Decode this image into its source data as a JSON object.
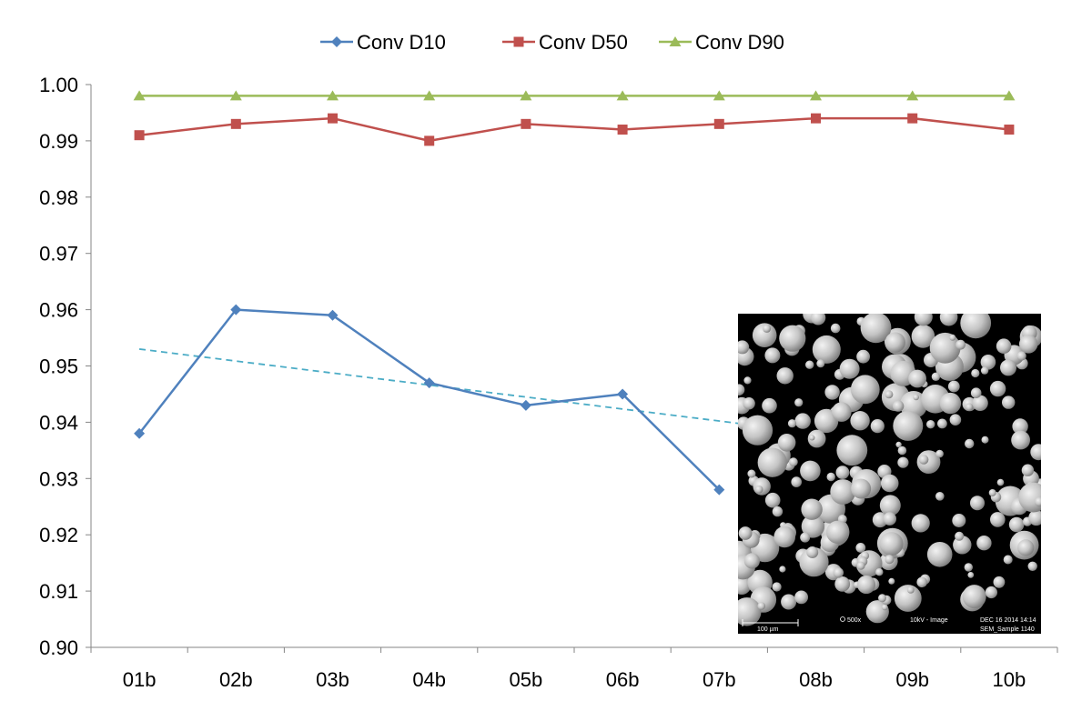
{
  "chart_data": {
    "type": "line",
    "categories": [
      "01b",
      "02b",
      "03b",
      "04b",
      "05b",
      "06b",
      "07b",
      "08b",
      "09b",
      "10b"
    ],
    "series": [
      {
        "name": "Conv D10",
        "values": [
          0.938,
          0.96,
          0.959,
          0.947,
          0.943,
          0.945,
          0.928,
          null,
          null,
          null
        ],
        "color": "#4f81bd",
        "marker": "diamond"
      },
      {
        "name": "Conv D50",
        "values": [
          0.991,
          0.993,
          0.994,
          0.99,
          0.993,
          0.992,
          0.993,
          0.994,
          0.994,
          0.992
        ],
        "color": "#c0504d",
        "marker": "square"
      },
      {
        "name": "Conv D90",
        "values": [
          0.998,
          0.998,
          0.998,
          0.998,
          0.998,
          0.998,
          0.998,
          0.998,
          0.998,
          0.998
        ],
        "color": "#9bbb59",
        "marker": "triangle"
      }
    ],
    "trendline": {
      "series": "Conv D10",
      "color": "#4bacc6",
      "style": "dashed",
      "start_value": 0.953,
      "slope_per_category": -0.00213
    },
    "yticks": [
      "0.90",
      "0.91",
      "0.92",
      "0.93",
      "0.94",
      "0.95",
      "0.96",
      "0.97",
      "0.98",
      "0.99",
      "1.00"
    ],
    "ylim": [
      0.9,
      1.0
    ],
    "grid": false,
    "legend_position": "top-center",
    "title": "",
    "xlabel": "",
    "ylabel": ""
  },
  "inset": {
    "description_kind": "SEM micrograph of spherical powder particles",
    "scale_bar_label": "100 µm",
    "magnification": "500x",
    "mode": "10kV - Image",
    "date": "DEC 16 2014 14:14",
    "sample": "SEM_Sample 1140"
  }
}
